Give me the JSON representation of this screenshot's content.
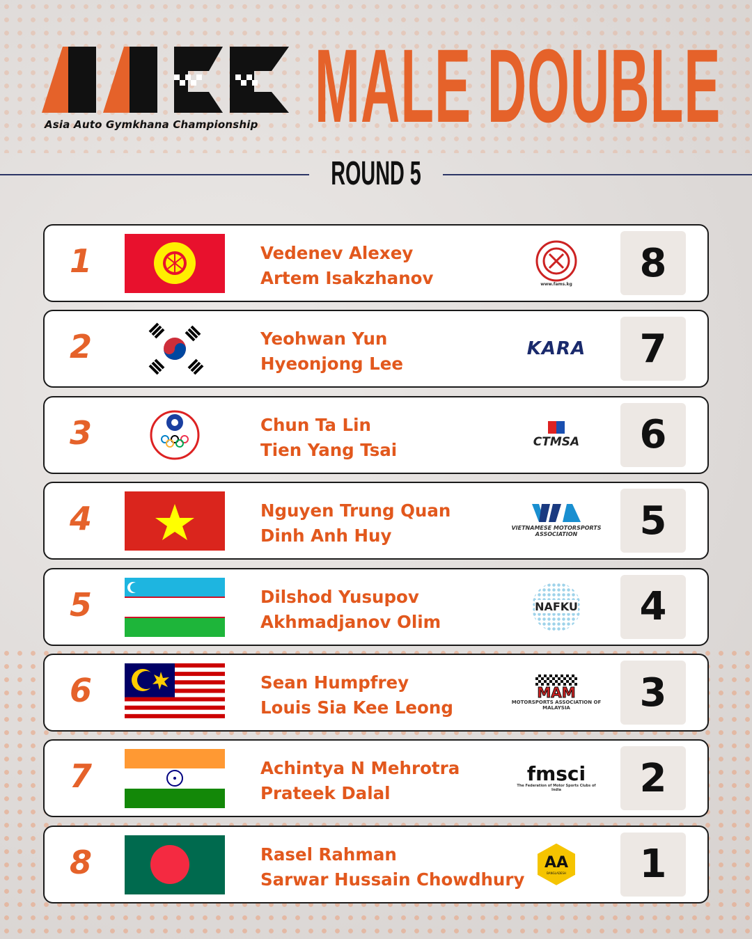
{
  "header": {
    "logo_text": "AAGC",
    "logo_subtitle": "Asia Auto Gymkhana Championship",
    "title": "MALE DOUBLE",
    "round": "ROUND 5"
  },
  "colors": {
    "accent": "#e5622a",
    "name_text": "#e2581d",
    "divider": "#2b3566",
    "points_bg": "#ede8e4"
  },
  "results": [
    {
      "rank": "1",
      "flag": "kyrgyzstan",
      "drivers": [
        "Vedenev Alexey",
        "Artem Isakzhanov"
      ],
      "org": {
        "name": "FAMS",
        "text": "www.fams.kg"
      },
      "points": "8"
    },
    {
      "rank": "2",
      "flag": "south-korea",
      "drivers": [
        "Yeohwan Yun",
        "Hyeonjong Lee"
      ],
      "org": {
        "name": "KARA",
        "text": "KARA"
      },
      "points": "7"
    },
    {
      "rank": "3",
      "flag": "chinese-taipei",
      "drivers": [
        "Chun Ta Lin",
        "Tien Yang Tsai"
      ],
      "org": {
        "name": "CTMSA",
        "text": "CTMSA"
      },
      "points": "6"
    },
    {
      "rank": "4",
      "flag": "vietnam",
      "drivers": [
        "Nguyen Trung Quan",
        "Dinh Anh Huy"
      ],
      "org": {
        "name": "VMA",
        "text": "VIETNAMESE MOTORSPORTS ASSOCIATION"
      },
      "points": "5"
    },
    {
      "rank": "5",
      "flag": "uzbekistan",
      "drivers": [
        "Dilshod Yusupov",
        "Akhmadjanov Olim"
      ],
      "org": {
        "name": "NAFKU",
        "text": "NAFKU"
      },
      "points": "4"
    },
    {
      "rank": "6",
      "flag": "malaysia",
      "drivers": [
        "Sean Humpfrey",
        "Louis Sia Kee Leong"
      ],
      "org": {
        "name": "MAM",
        "text": "MOTORSPORTS ASSOCIATION OF MALAYSIA"
      },
      "points": "3"
    },
    {
      "rank": "7",
      "flag": "india",
      "drivers": [
        "Achintya N Mehrotra",
        "Prateek Dalal"
      ],
      "org": {
        "name": "fmsci",
        "text": "The Federation of Motor Sports Clubs of India"
      },
      "points": "2"
    },
    {
      "rank": "8",
      "flag": "bangladesh",
      "drivers": [
        "Rasel Rahman",
        "Sarwar Hussain Chowdhury"
      ],
      "org": {
        "name": "AA",
        "text": "BANGLADESH"
      },
      "points": "1"
    }
  ]
}
